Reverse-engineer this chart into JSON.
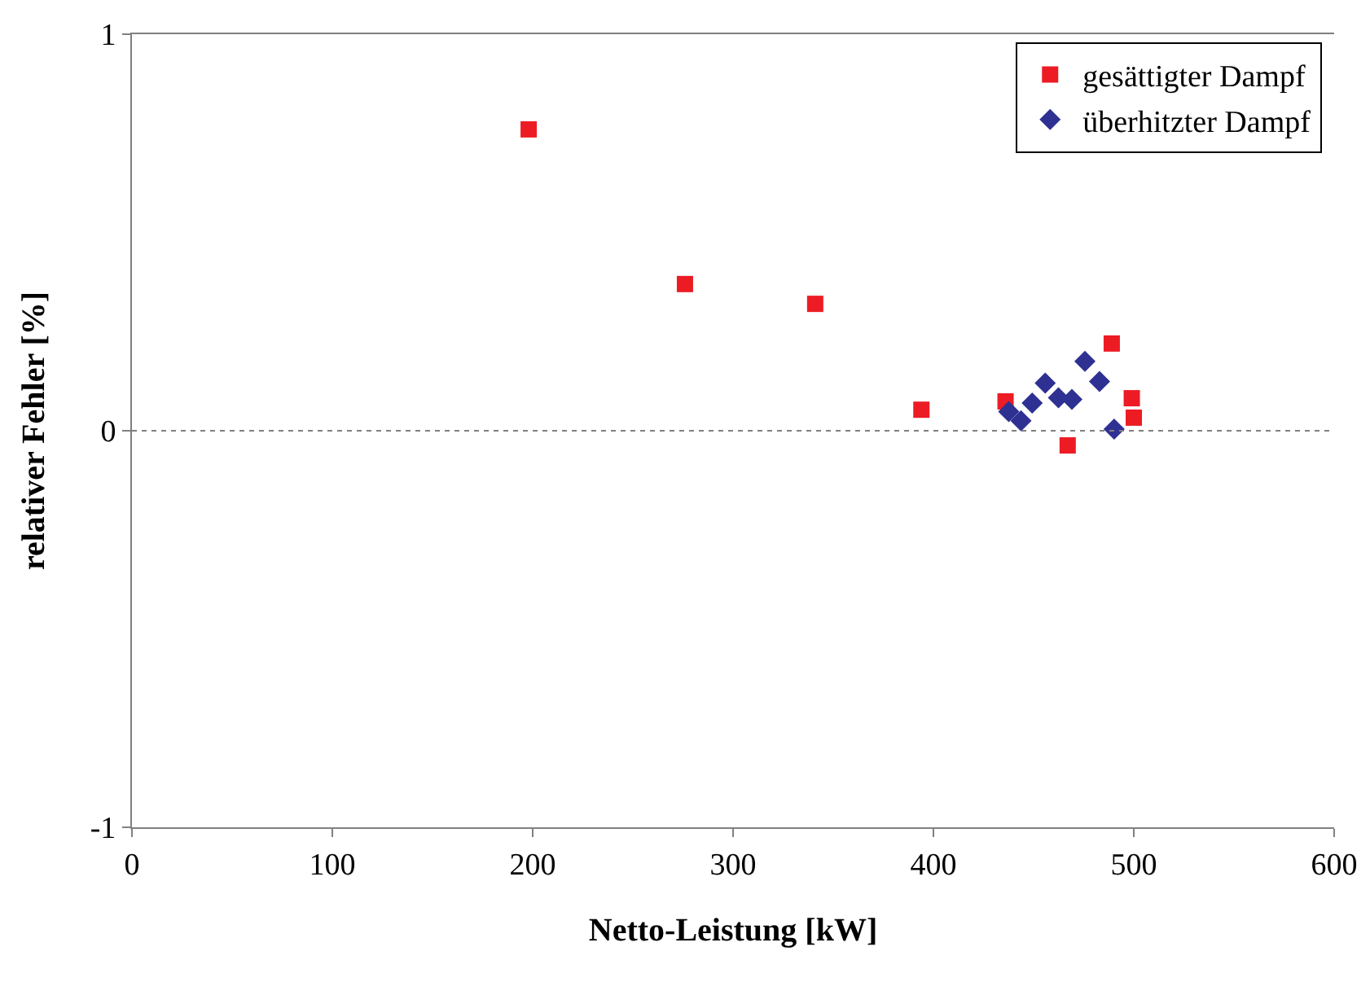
{
  "chart_data": {
    "type": "scatter",
    "xlabel": "Netto-Leistung [kW]",
    "ylabel": "relativer Fehler [%]",
    "xlim": [
      0,
      600
    ],
    "xticks": [
      0,
      100,
      200,
      300,
      400,
      500,
      600
    ],
    "ylim": [
      -1,
      1
    ],
    "yticks": [
      -1,
      0,
      1
    ],
    "grid": false,
    "legend": "top right",
    "ref_lines": [
      {
        "axis": "y",
        "value": 0,
        "line_style": "dotted",
        "color": "#808080"
      }
    ],
    "series": [
      {
        "name": "gesättigter Dampf",
        "color": "#ed1c24",
        "marker": "square",
        "x": [
          198,
          276,
          341,
          394,
          436,
          467,
          489,
          499,
          500
        ],
        "values": [
          0.76,
          0.37,
          0.32,
          0.053,
          0.074,
          -0.037,
          0.22,
          0.082,
          0.033
        ]
      },
      {
        "name": "überhitzter Dampf",
        "color": "#2e3192",
        "marker": "diamond",
        "x": [
          437.6,
          443.7,
          449.3,
          455.8,
          462.4,
          469.1,
          475.6,
          482.9,
          490.2
        ],
        "values": [
          0.048,
          0.025,
          0.07,
          0.12,
          0.083,
          0.079,
          0.175,
          0.124,
          0.004
        ]
      }
    ]
  }
}
